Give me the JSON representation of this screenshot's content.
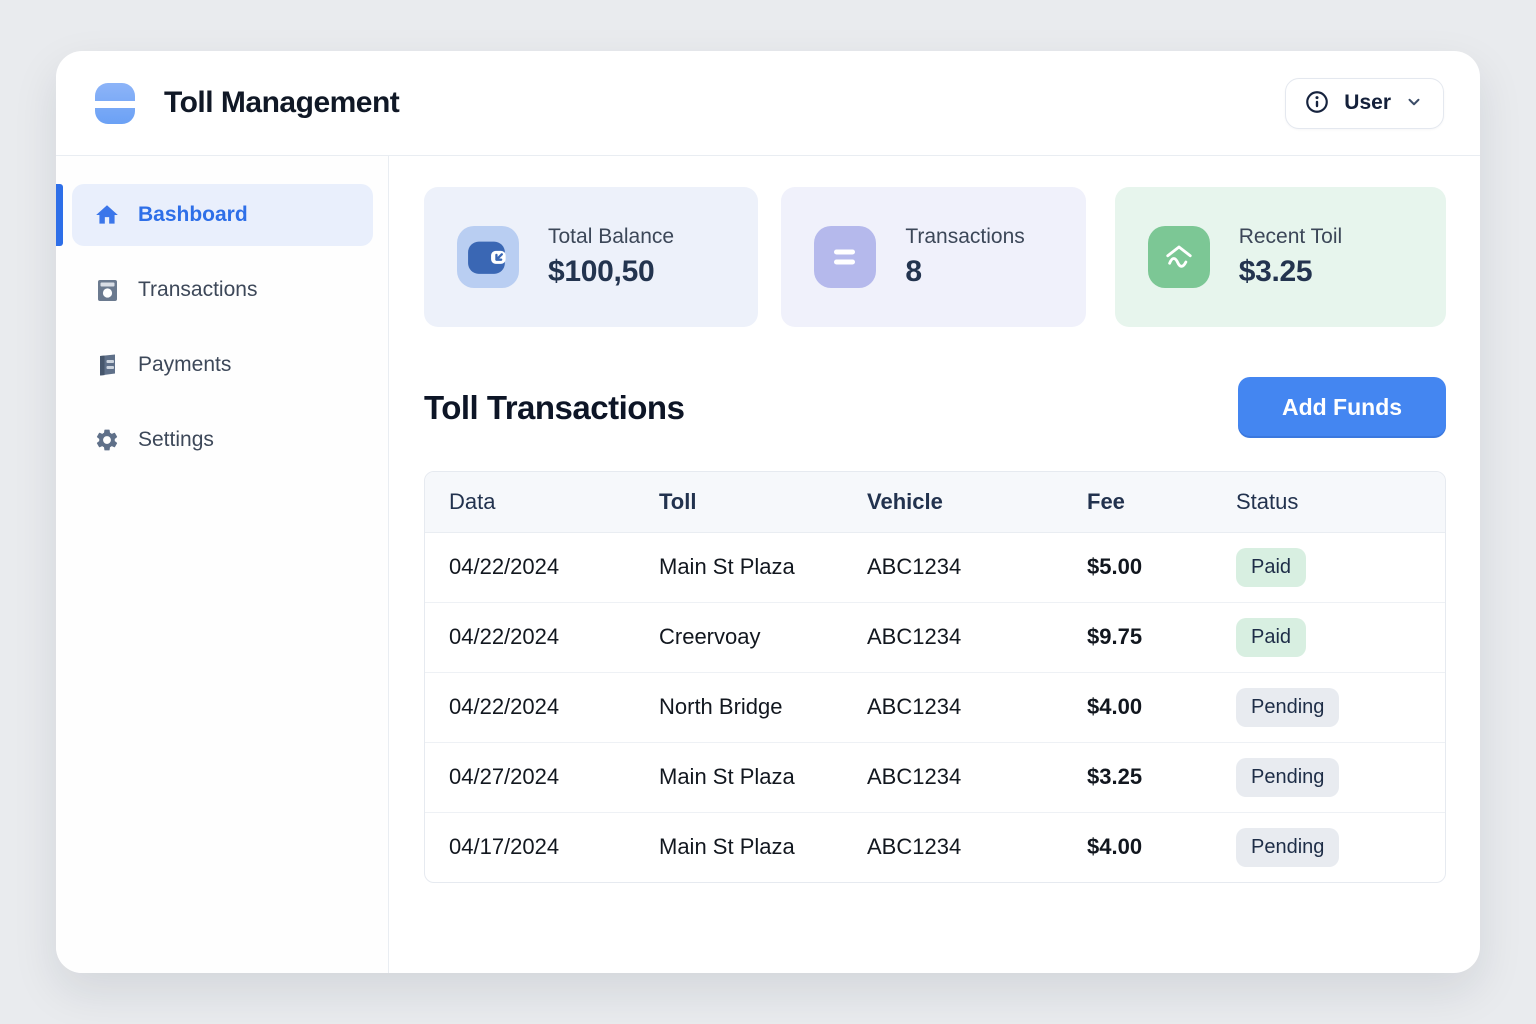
{
  "app": {
    "title": "Toll Management"
  },
  "header": {
    "user_label": "User",
    "icons": [
      "info-icon",
      "chevron-down-icon"
    ]
  },
  "sidebar": {
    "items": [
      {
        "label": "Bashboard",
        "icon": "home-icon",
        "active": true
      },
      {
        "label": "Transactions",
        "icon": "receipt-icon",
        "active": false
      },
      {
        "label": "Payments",
        "icon": "payments-icon",
        "active": false
      },
      {
        "label": "Settings",
        "icon": "gear-icon",
        "active": false
      }
    ]
  },
  "stats": [
    {
      "label": "Total Balance",
      "value": "$100,50",
      "icon": "wallet-icon",
      "card_bg": "#edf1fa",
      "tile_bg": "#b9cef2"
    },
    {
      "label": "Transactions",
      "value": "8",
      "icon": "list-icon",
      "card_bg": "#f0f1fb",
      "tile_bg": "#b5b9ec"
    },
    {
      "label": "Recent Toil",
      "value": "$3.25",
      "icon": "toll-booth-icon",
      "card_bg": "#e7f5ed",
      "tile_bg": "#7cc795"
    }
  ],
  "section": {
    "title": "Toll Transactions",
    "add_funds_label": "Add Funds"
  },
  "table": {
    "columns": [
      "Data",
      "Toll",
      "Vehicle",
      "Fee",
      "Status"
    ],
    "rows": [
      {
        "date": "04/22/2024",
        "toll": "Main St Plaza",
        "vehicle": "ABC1234",
        "fee": "$5.00",
        "status": "Paid"
      },
      {
        "date": "04/22/2024",
        "toll": "Creervoay",
        "vehicle": "ABC1234",
        "fee": "$9.75",
        "status": "Paid"
      },
      {
        "date": "04/22/2024",
        "toll": "North Bridge",
        "vehicle": "ABC1234",
        "fee": "$4.00",
        "status": "Pending"
      },
      {
        "date": "04/27/2024",
        "toll": "Main St Plaza",
        "vehicle": "ABC1234",
        "fee": "$3.25",
        "status": "Pending"
      },
      {
        "date": "04/17/2024",
        "toll": "Main St Plaza",
        "vehicle": "ABC1234",
        "fee": "$4.00",
        "status": "Pending"
      }
    ]
  },
  "colors": {
    "accent_blue": "#2e6fe8",
    "button_blue": "#4486f1",
    "active_item_bg": "#e9effc",
    "paid_badge_bg": "#d8efe1",
    "pending_badge_bg": "#e8ebf0",
    "card_balance_bg": "#edf1fa",
    "card_transactions_bg": "#f0f1fb",
    "card_recent_bg": "#e7f5ed"
  }
}
